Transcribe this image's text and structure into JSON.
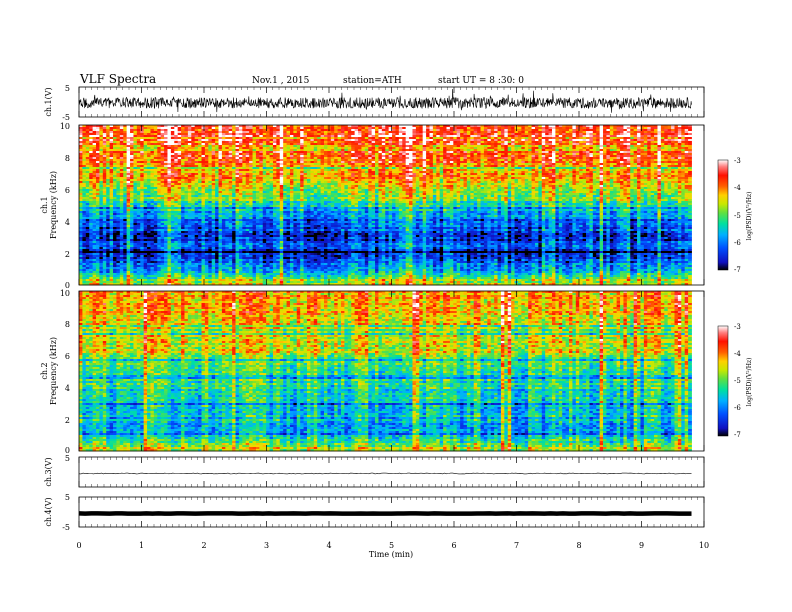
{
  "header": {
    "title": "VLF  Spectra",
    "date": "Nov.1  , 2015",
    "station": "station=ATH",
    "start": "start  UT  =   8 :30: 0"
  },
  "colors": {
    "scale": [
      "#000000",
      "#1010c0",
      "#0050ff",
      "#00b0ff",
      "#00e0a0",
      "#60e040",
      "#c8e800",
      "#ffd000",
      "#ff6000",
      "#ff1000",
      "#ff8080",
      "#ffffff"
    ],
    "trace": "#000000"
  },
  "chart_data": [
    {
      "type": "line",
      "name": "ch1-waveform",
      "ylabel": "ch.1(V)",
      "ylim": [
        -5,
        5
      ],
      "ytick_labels": [
        "5",
        "-5"
      ],
      "xlim": [
        0,
        10
      ],
      "data_extent_min": 9.8,
      "baseline": -0.3,
      "noise_amplitude": 1.8
    },
    {
      "type": "heatmap",
      "name": "ch1-spectrogram",
      "ylabel": "ch.1\nFrequency  (kHz)",
      "ylim": [
        0,
        10
      ],
      "ytick_labels": [
        "0",
        "2",
        "4",
        "6",
        "8",
        "10"
      ],
      "xlim": [
        0,
        10
      ],
      "colorbar": {
        "label": "log(PSD)(V²/Hz)",
        "range": [
          -7,
          -3
        ],
        "tick_labels": [
          "-3",
          "-4",
          "-5",
          "-6",
          "-7"
        ]
      },
      "level_profile_by_khz": [
        [
          0,
          -4.2
        ],
        [
          1,
          -6.0
        ],
        [
          2,
          -6.3
        ],
        [
          3,
          -6.4
        ],
        [
          4,
          -6.1
        ],
        [
          5,
          -5.2
        ],
        [
          6,
          -4.6
        ],
        [
          7,
          -4.1
        ],
        [
          8,
          -3.8
        ],
        [
          9,
          -3.6
        ],
        [
          10,
          -3.5
        ]
      ]
    },
    {
      "type": "heatmap",
      "name": "ch2-spectrogram",
      "ylabel": "ch.2\nFrequency  (kHz)",
      "ylim": [
        0,
        10
      ],
      "ytick_labels": [
        "0",
        "2",
        "4",
        "6",
        "8",
        "10"
      ],
      "xlim": [
        0,
        10
      ],
      "colorbar": {
        "label": "log(PSD)(V²/Hz)",
        "range": [
          -7,
          -3
        ],
        "tick_labels": [
          "-3",
          "-4",
          "-5",
          "-6",
          "-7"
        ]
      },
      "level_profile_by_khz": [
        [
          0,
          -4.4
        ],
        [
          1,
          -5.6
        ],
        [
          2,
          -5.6
        ],
        [
          3,
          -5.5
        ],
        [
          4,
          -5.3
        ],
        [
          5,
          -5.0
        ],
        [
          6,
          -4.7
        ],
        [
          7,
          -4.5
        ],
        [
          8,
          -4.3
        ],
        [
          9,
          -4.2
        ],
        [
          10,
          -4.1
        ]
      ]
    },
    {
      "type": "line",
      "name": "ch3-waveform",
      "ylabel": "ch.3(V)",
      "ylim": [
        -5,
        5
      ],
      "ytick_labels": [
        "5",
        ""
      ],
      "xlim": [
        0,
        10
      ],
      "baseline": -0.5,
      "noise_amplitude": 0.15
    },
    {
      "type": "line",
      "name": "ch4-waveform",
      "ylabel": "ch.4(V)",
      "ylim": [
        -5,
        5
      ],
      "ytick_labels": [
        "5",
        "-5"
      ],
      "xlim": [
        0,
        10
      ],
      "baseline": -0.5,
      "noise_amplitude": 0.05
    }
  ],
  "xaxis": {
    "label": "Time  (min)",
    "tick_labels": [
      "0",
      "1",
      "2",
      "3",
      "4",
      "5",
      "6",
      "7",
      "8",
      "9",
      "10"
    ]
  }
}
